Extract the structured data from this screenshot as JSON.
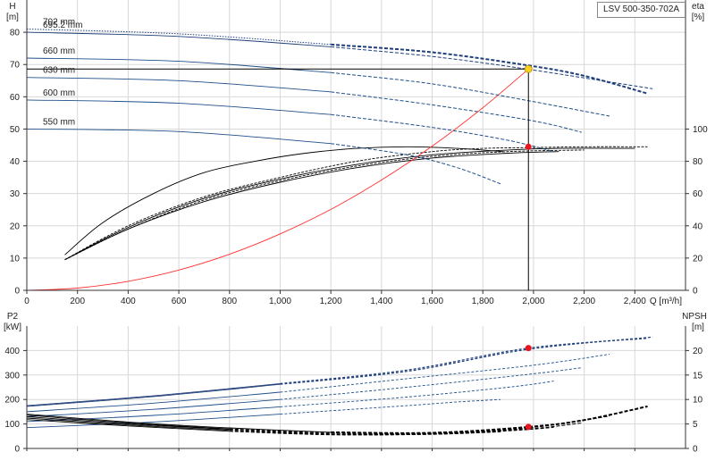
{
  "model": "LSV 500-350-702A",
  "chart_data": [
    {
      "id": "top",
      "type": "line",
      "title": "",
      "xlabel": "Q [m³/h]",
      "ylabel_left_unit": "H",
      "ylabel_left_sub": "[m]",
      "ylabel_right_unit": "eta",
      "ylabel_right_sub": "[%]",
      "xlim": [
        0,
        2600
      ],
      "ylim_left": [
        0,
        90
      ],
      "ylim_right": [
        0,
        180
      ],
      "x_ticks": [
        0,
        200,
        400,
        600,
        800,
        1000,
        1200,
        1400,
        1600,
        1800,
        2000,
        2200,
        2400
      ],
      "x_tick_labels": [
        "0",
        "200",
        "400",
        "600",
        "800",
        "1,000",
        "1,200",
        "1,400",
        "1,600",
        "1,800",
        "2,000",
        "2,200",
        "2,400"
      ],
      "y_ticks_left": [
        0,
        10,
        20,
        30,
        40,
        50,
        60,
        70,
        80
      ],
      "y_ticks_right": [
        0,
        20,
        40,
        60,
        80,
        100
      ],
      "grid": true,
      "head_curves": [
        {
          "label": "702 mm",
          "color": "#1f3f7a",
          "heavy": true,
          "points": [
            [
              0,
              81
            ],
            [
              600,
              79.5
            ],
            [
              1200,
              76.2
            ],
            [
              1600,
              73.8
            ],
            [
              1980,
              69.7
            ],
            [
              2200,
              66.5
            ],
            [
              2450,
              61
            ]
          ]
        },
        {
          "label": "695.2 mm",
          "color": "#1f3f7a",
          "points": [
            [
              0,
              80
            ],
            [
              600,
              78.7
            ],
            [
              1200,
              75.5
            ],
            [
              1600,
              72.5
            ],
            [
              1980,
              68.5
            ],
            [
              2470,
              62.5
            ]
          ]
        },
        {
          "label": "660 mm",
          "color": "#1f4f8a",
          "points": [
            [
              0,
              72
            ],
            [
              600,
              71
            ],
            [
              1200,
              67.5
            ],
            [
              1600,
              64
            ],
            [
              2000,
              58.5
            ],
            [
              2300,
              54
            ]
          ]
        },
        {
          "label": "630 mm",
          "color": "#1f4f8a",
          "points": [
            [
              0,
              66
            ],
            [
              600,
              65
            ],
            [
              1200,
              61.5
            ],
            [
              1600,
              57.5
            ],
            [
              2000,
              52.5
            ],
            [
              2190,
              49
            ]
          ]
        },
        {
          "label": "600 mm",
          "color": "#1f4f8a",
          "points": [
            [
              0,
              59
            ],
            [
              600,
              58
            ],
            [
              1200,
              54.5
            ],
            [
              1600,
              50.5
            ],
            [
              1900,
              46.5
            ],
            [
              2080,
              43
            ]
          ]
        },
        {
          "label": "550 mm",
          "color": "#1f4f8a",
          "points": [
            [
              0,
              50
            ],
            [
              600,
              49.2
            ],
            [
              1200,
              45.5
            ],
            [
              1500,
              42
            ],
            [
              1700,
              38
            ],
            [
              1870,
              33
            ]
          ]
        }
      ],
      "efficiency_curves": [
        {
          "color": "#000000",
          "points": [
            [
              150,
              22
            ],
            [
              300,
              42
            ],
            [
              500,
              60
            ],
            [
              700,
              73
            ],
            [
              900,
              80
            ],
            [
              1100,
              85
            ],
            [
              1300,
              88
            ],
            [
              1500,
              89
            ],
            [
              1700,
              88
            ],
            [
              1880,
              86
            ]
          ]
        },
        {
          "color": "#000000",
          "points": [
            [
              150,
              19
            ],
            [
              400,
              40
            ],
            [
              700,
              58
            ],
            [
              1000,
              70
            ],
            [
              1300,
              80
            ],
            [
              1600,
              86
            ],
            [
              1800,
              88
            ],
            [
              2000,
              88.5
            ],
            [
              2200,
              89
            ],
            [
              2450,
              89
            ]
          ]
        },
        {
          "color": "#000000",
          "points": [
            [
              150,
              19
            ],
            [
              400,
              39
            ],
            [
              700,
              57
            ],
            [
              1000,
              69
            ],
            [
              1300,
              78
            ],
            [
              1600,
              84
            ],
            [
              1900,
              87
            ],
            [
              2100,
              88
            ],
            [
              2400,
              88
            ]
          ]
        },
        {
          "color": "#000000",
          "points": [
            [
              150,
              19
            ],
            [
              400,
              38
            ],
            [
              700,
              56
            ],
            [
              1000,
              68
            ],
            [
              1300,
              77
            ],
            [
              1600,
              83
            ],
            [
              1900,
              86
            ],
            [
              2200,
              87
            ]
          ]
        },
        {
          "color": "#000000",
          "points": [
            [
              150,
              19
            ],
            [
              400,
              38
            ],
            [
              700,
              55
            ],
            [
              1000,
              67
            ],
            [
              1300,
              76
            ],
            [
              1600,
              82
            ],
            [
              1900,
              85
            ],
            [
              2100,
              86
            ]
          ]
        }
      ],
      "system_curve": {
        "color": "#ff3030",
        "points": [
          [
            0,
            0
          ],
          [
            200,
            0.7
          ],
          [
            400,
            2.8
          ],
          [
            600,
            6.3
          ],
          [
            800,
            11.2
          ],
          [
            1000,
            17.5
          ],
          [
            1200,
            25.1
          ],
          [
            1400,
            34.2
          ],
          [
            1600,
            44.7
          ],
          [
            1800,
            56.6
          ],
          [
            1980,
            68.6
          ]
        ]
      },
      "operating_point": {
        "q": 1980,
        "h": 68.6,
        "eta": 89
      },
      "marker_colors": {
        "duty": "#ffd21e",
        "point": "#e8141e"
      }
    },
    {
      "id": "bottom",
      "type": "line",
      "title": "",
      "ylabel_left_unit": "P2",
      "ylabel_left_sub": "[kW]",
      "ylabel_right_unit": "NPSH",
      "ylabel_right_sub": "[m]",
      "xlim": [
        0,
        2600
      ],
      "ylim_left": [
        0,
        500
      ],
      "ylim_right": [
        0,
        25
      ],
      "y_ticks_left": [
        0,
        100,
        200,
        300,
        400
      ],
      "y_ticks_right": [
        0,
        5,
        10,
        15,
        20
      ],
      "grid": true,
      "power_curves": [
        {
          "color": "#1f3f7a",
          "points": [
            [
              0,
              175
            ],
            [
              500,
              215
            ],
            [
              1000,
              265
            ],
            [
              1500,
              320
            ],
            [
              1980,
              410
            ],
            [
              2450,
              450
            ]
          ]
        },
        {
          "color": "#1f3f7a",
          "points": [
            [
              0,
              172
            ],
            [
              500,
              212
            ],
            [
              1000,
              262
            ],
            [
              1500,
              315
            ],
            [
              1980,
              405
            ],
            [
              2470,
              455
            ]
          ]
        },
        {
          "color": "#1f4f8a",
          "points": [
            [
              0,
              150
            ],
            [
              500,
              185
            ],
            [
              1000,
              230
            ],
            [
              1500,
              285
            ],
            [
              2000,
              340
            ],
            [
              2300,
              385
            ]
          ]
        },
        {
          "color": "#1f4f8a",
          "points": [
            [
              0,
              130
            ],
            [
              500,
              160
            ],
            [
              1000,
              200
            ],
            [
              1500,
              250
            ],
            [
              2000,
              305
            ],
            [
              2190,
              330
            ]
          ]
        },
        {
          "color": "#1f4f8a",
          "points": [
            [
              0,
              110
            ],
            [
              500,
              135
            ],
            [
              1000,
              170
            ],
            [
              1500,
              210
            ],
            [
              1900,
              250
            ],
            [
              2080,
              275
            ]
          ]
        },
        {
          "color": "#1f4f8a",
          "points": [
            [
              0,
              85
            ],
            [
              500,
              108
            ],
            [
              1000,
              140
            ],
            [
              1500,
              175
            ],
            [
              1700,
              190
            ],
            [
              1870,
              200
            ]
          ]
        }
      ],
      "npsh_curves": [
        {
          "color": "#000000",
          "points": [
            [
              0,
              7
            ],
            [
              400,
              5.4
            ],
            [
              800,
              4.2
            ],
            [
              1200,
              3.3
            ],
            [
              1600,
              3.2
            ],
            [
              1980,
              4.4
            ],
            [
              2200,
              5.8
            ],
            [
              2450,
              8.6
            ]
          ]
        },
        {
          "color": "#000000",
          "points": [
            [
              0,
              6.8
            ],
            [
              400,
              5.2
            ],
            [
              800,
              4.0
            ],
            [
              1200,
              3.2
            ],
            [
              1600,
              3.1
            ],
            [
              1980,
              4.2
            ],
            [
              2300,
              6.6
            ]
          ]
        },
        {
          "color": "#000000",
          "points": [
            [
              0,
              6.5
            ],
            [
              400,
              5.0
            ],
            [
              800,
              3.9
            ],
            [
              1200,
              3.0
            ],
            [
              1600,
              3.0
            ],
            [
              1980,
              4.0
            ],
            [
              2190,
              5.2
            ]
          ]
        },
        {
          "color": "#000000",
          "points": [
            [
              0,
              6.2
            ],
            [
              400,
              4.8
            ],
            [
              800,
              3.7
            ],
            [
              1200,
              2.9
            ],
            [
              1600,
              2.9
            ],
            [
              1900,
              3.6
            ],
            [
              2080,
              4.3
            ]
          ]
        },
        {
          "color": "#000000",
          "points": [
            [
              0,
              5.9
            ],
            [
              400,
              4.6
            ],
            [
              800,
              3.5
            ],
            [
              1200,
              2.8
            ],
            [
              1600,
              2.9
            ],
            [
              1870,
              3.4
            ]
          ]
        }
      ],
      "operating_point": {
        "q": 1980,
        "p2": 410,
        "npsh": 4.4
      }
    }
  ]
}
